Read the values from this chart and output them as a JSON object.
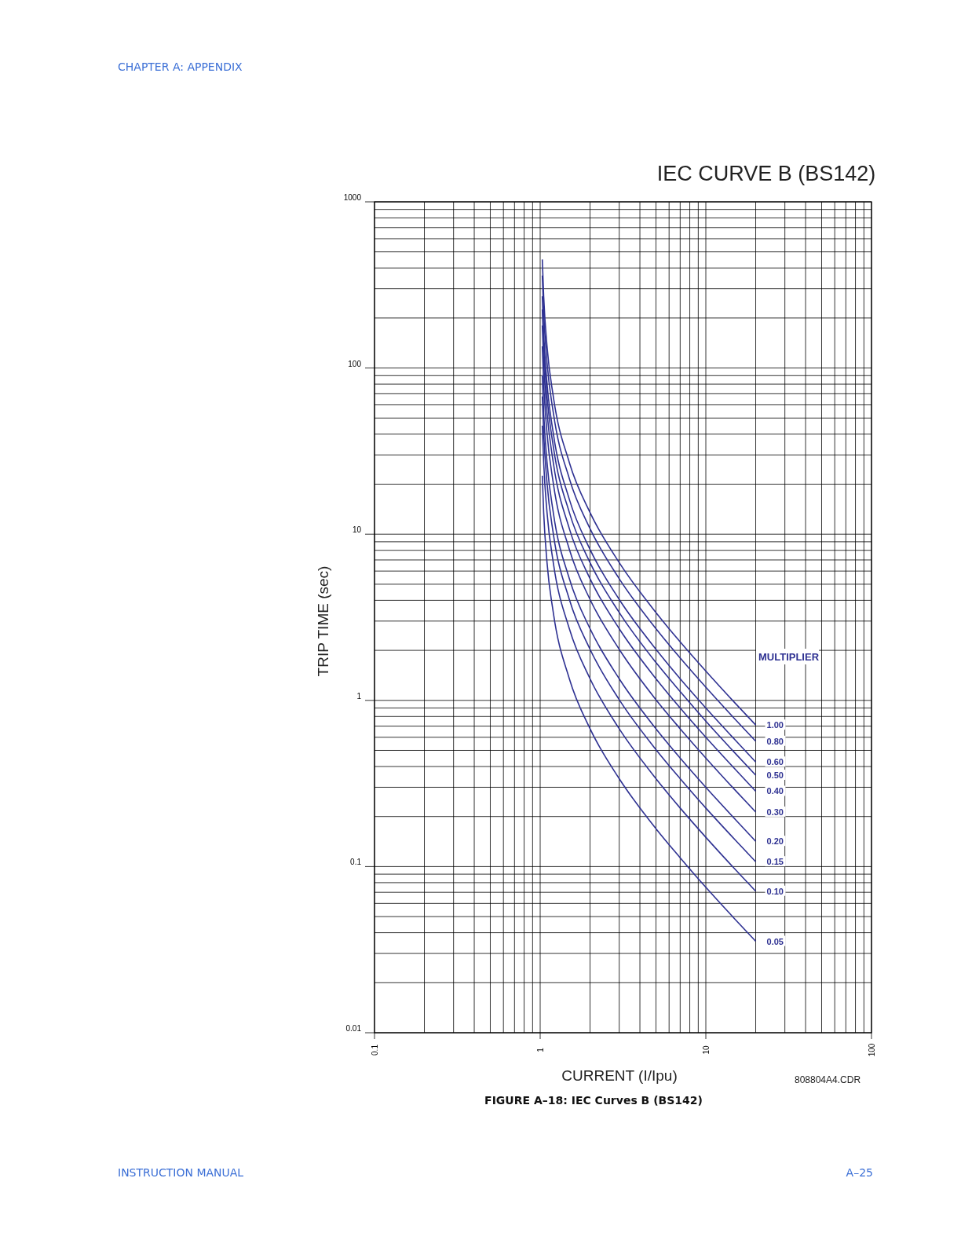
{
  "chart_data": {
    "type": "line",
    "title": "IEC CURVE B (BS142)",
    "xlabel": "CURRENT (I/Ipu)",
    "ylabel": "TRIP TIME (sec)",
    "legend_title": "MULTIPLIER",
    "log": "xy",
    "grid": true,
    "xlim": [
      0.1,
      100
    ],
    "xticks": [
      0.1,
      1,
      10,
      100
    ],
    "ylim": [
      0.01,
      1000
    ],
    "yticks": [
      0.01,
      0.1,
      1,
      10,
      100,
      1000
    ],
    "x": [
      1.03,
      1.05,
      1.1,
      1.2,
      1.5,
      2,
      3,
      5,
      7,
      10,
      15,
      20
    ],
    "series": [
      {
        "name": "1.00",
        "color": "#2e3192",
        "values": [
          450,
          270,
          135,
          67.5,
          27,
          13.5,
          6.75,
          3.38,
          2.25,
          1.5,
          0.964,
          0.711
        ]
      },
      {
        "name": "0.80",
        "color": "#2e3192",
        "values": [
          360,
          216,
          108,
          54,
          21.6,
          10.8,
          5.4,
          2.7,
          1.8,
          1.2,
          0.771,
          0.568
        ]
      },
      {
        "name": "0.60",
        "color": "#2e3192",
        "values": [
          270,
          162,
          81,
          40.5,
          16.2,
          8.1,
          4.05,
          2.03,
          1.35,
          0.9,
          0.579,
          0.426
        ]
      },
      {
        "name": "0.50",
        "color": "#2e3192",
        "values": [
          225,
          135,
          67.5,
          33.8,
          13.5,
          6.75,
          3.38,
          1.69,
          1.13,
          0.75,
          0.482,
          0.355
        ]
      },
      {
        "name": "0.40",
        "color": "#2e3192",
        "values": [
          180,
          108,
          54,
          27,
          10.8,
          5.4,
          2.7,
          1.35,
          0.9,
          0.6,
          0.386,
          0.284
        ]
      },
      {
        "name": "0.30",
        "color": "#2e3192",
        "values": [
          135,
          81,
          40.5,
          20.3,
          8.1,
          4.05,
          2.03,
          1.01,
          0.675,
          0.45,
          0.289,
          0.213
        ]
      },
      {
        "name": "0.20",
        "color": "#2e3192",
        "values": [
          90,
          54,
          27,
          13.5,
          5.4,
          2.7,
          1.35,
          0.675,
          0.45,
          0.3,
          0.193,
          0.142
        ]
      },
      {
        "name": "0.15",
        "color": "#2e3192",
        "values": [
          67.5,
          40.5,
          20.3,
          10.1,
          4.05,
          2.03,
          1.01,
          0.506,
          0.338,
          0.225,
          0.145,
          0.107
        ]
      },
      {
        "name": "0.10",
        "color": "#2e3192",
        "values": [
          45,
          27,
          13.5,
          6.75,
          2.7,
          1.35,
          0.675,
          0.338,
          0.225,
          0.15,
          0.0964,
          0.0711
        ]
      },
      {
        "name": "0.05",
        "color": "#2e3192",
        "values": [
          22.5,
          13.5,
          6.75,
          3.38,
          1.35,
          0.675,
          0.338,
          0.169,
          0.113,
          0.075,
          0.0482,
          0.0355
        ]
      }
    ],
    "annotations": [
      "CHAPTER A: APPENDIX",
      "808804A4.CDR",
      "FIGURE A–18: IEC Curves B (BS142)",
      "INSTRUCTION MANUAL",
      "A–25"
    ]
  }
}
